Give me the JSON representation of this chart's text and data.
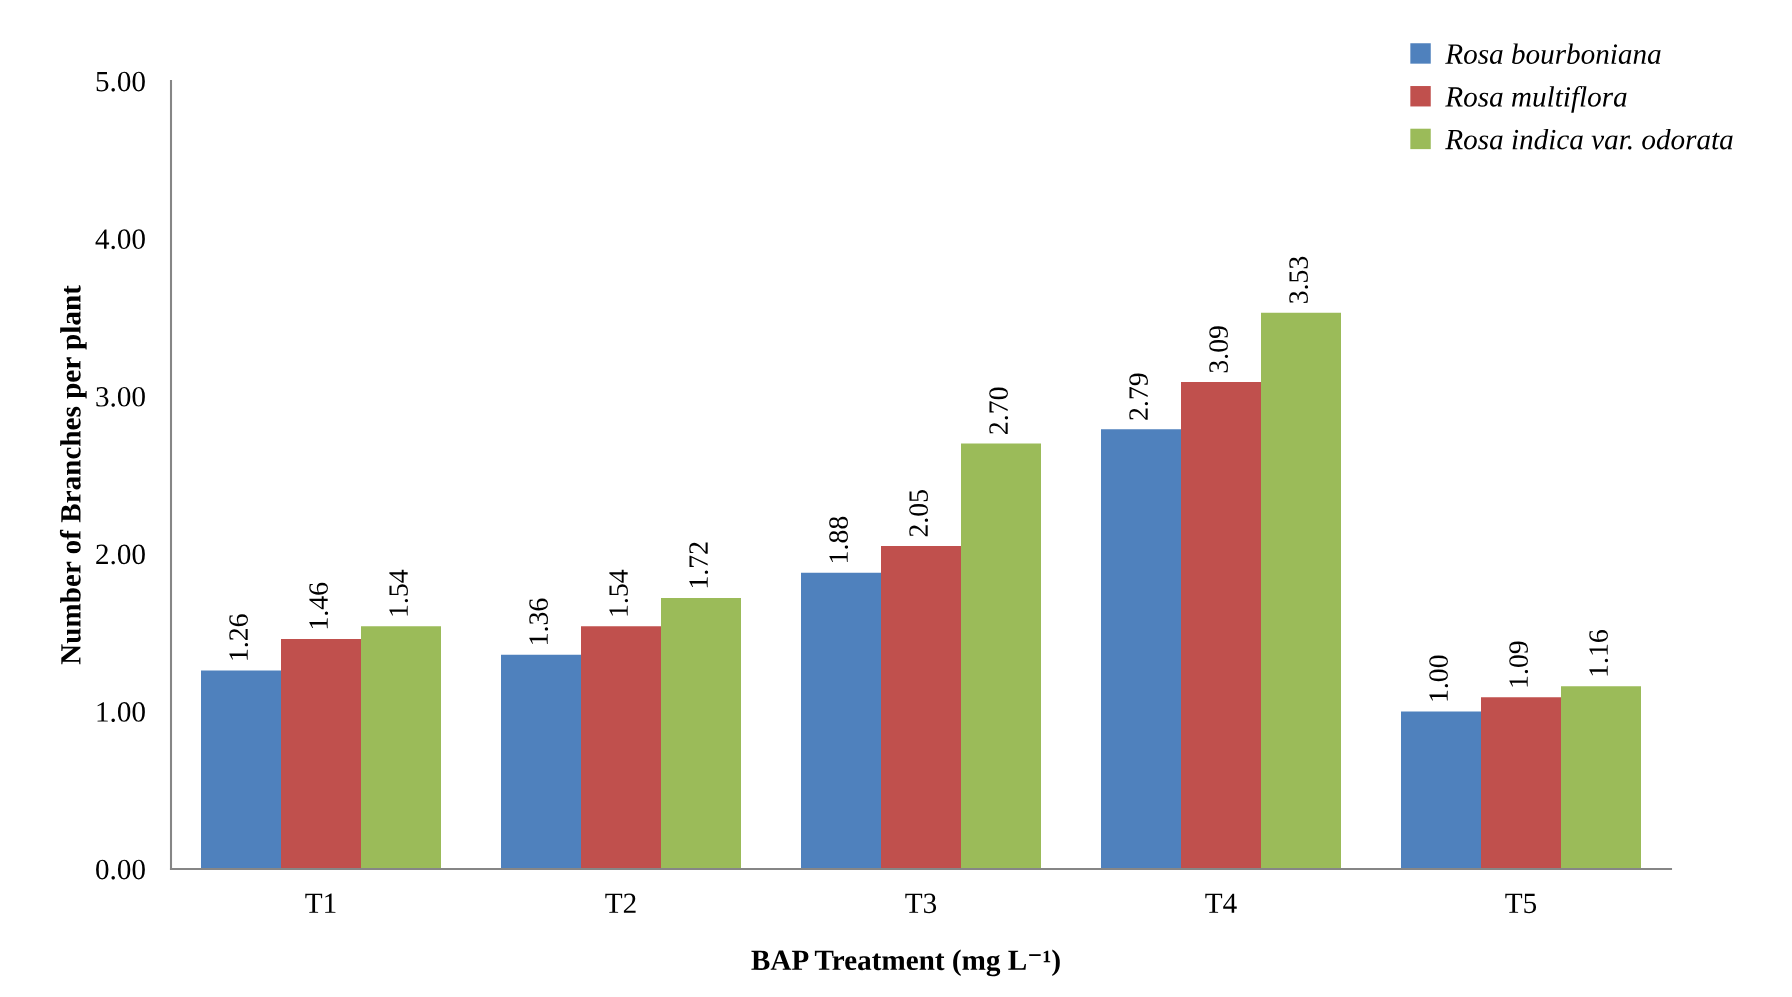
{
  "chart_data": {
    "type": "bar",
    "xlabel": "BAP Treatment (mg L⁻¹)",
    "ylabel": "Number of Branches per plant",
    "categories": [
      "T1",
      "T2",
      "T3",
      "T4",
      "T5"
    ],
    "series": [
      {
        "name": "Rosa bourboniana",
        "color": "#4f81bd",
        "values": [
          1.26,
          1.36,
          1.88,
          2.79,
          1.0
        ],
        "value_labels": [
          "1.26",
          "1.36",
          "1.88",
          "2.79",
          "1.00"
        ]
      },
      {
        "name": "Rosa multiflora",
        "color": "#c0504d",
        "values": [
          1.46,
          1.54,
          2.05,
          3.09,
          1.09
        ],
        "value_labels": [
          "1.46",
          "1.54",
          "2.05",
          "3.09",
          "1.09"
        ]
      },
      {
        "name": "Rosa indica var. odorata",
        "color": "#9bbb59",
        "values": [
          1.54,
          1.72,
          2.7,
          3.53,
          1.16
        ],
        "value_labels": [
          "1.54",
          "1.72",
          "2.70",
          "3.53",
          "1.16"
        ]
      }
    ],
    "ylim": [
      0,
      5
    ],
    "yticks": [
      {
        "value": 0,
        "label": "0.00"
      },
      {
        "value": 1,
        "label": "1.00"
      },
      {
        "value": 2,
        "label": "2.00"
      },
      {
        "value": 3,
        "label": "3.00"
      },
      {
        "value": 4,
        "label": "4.00"
      },
      {
        "value": 5,
        "label": "5.00"
      }
    ],
    "legend": "top right"
  }
}
